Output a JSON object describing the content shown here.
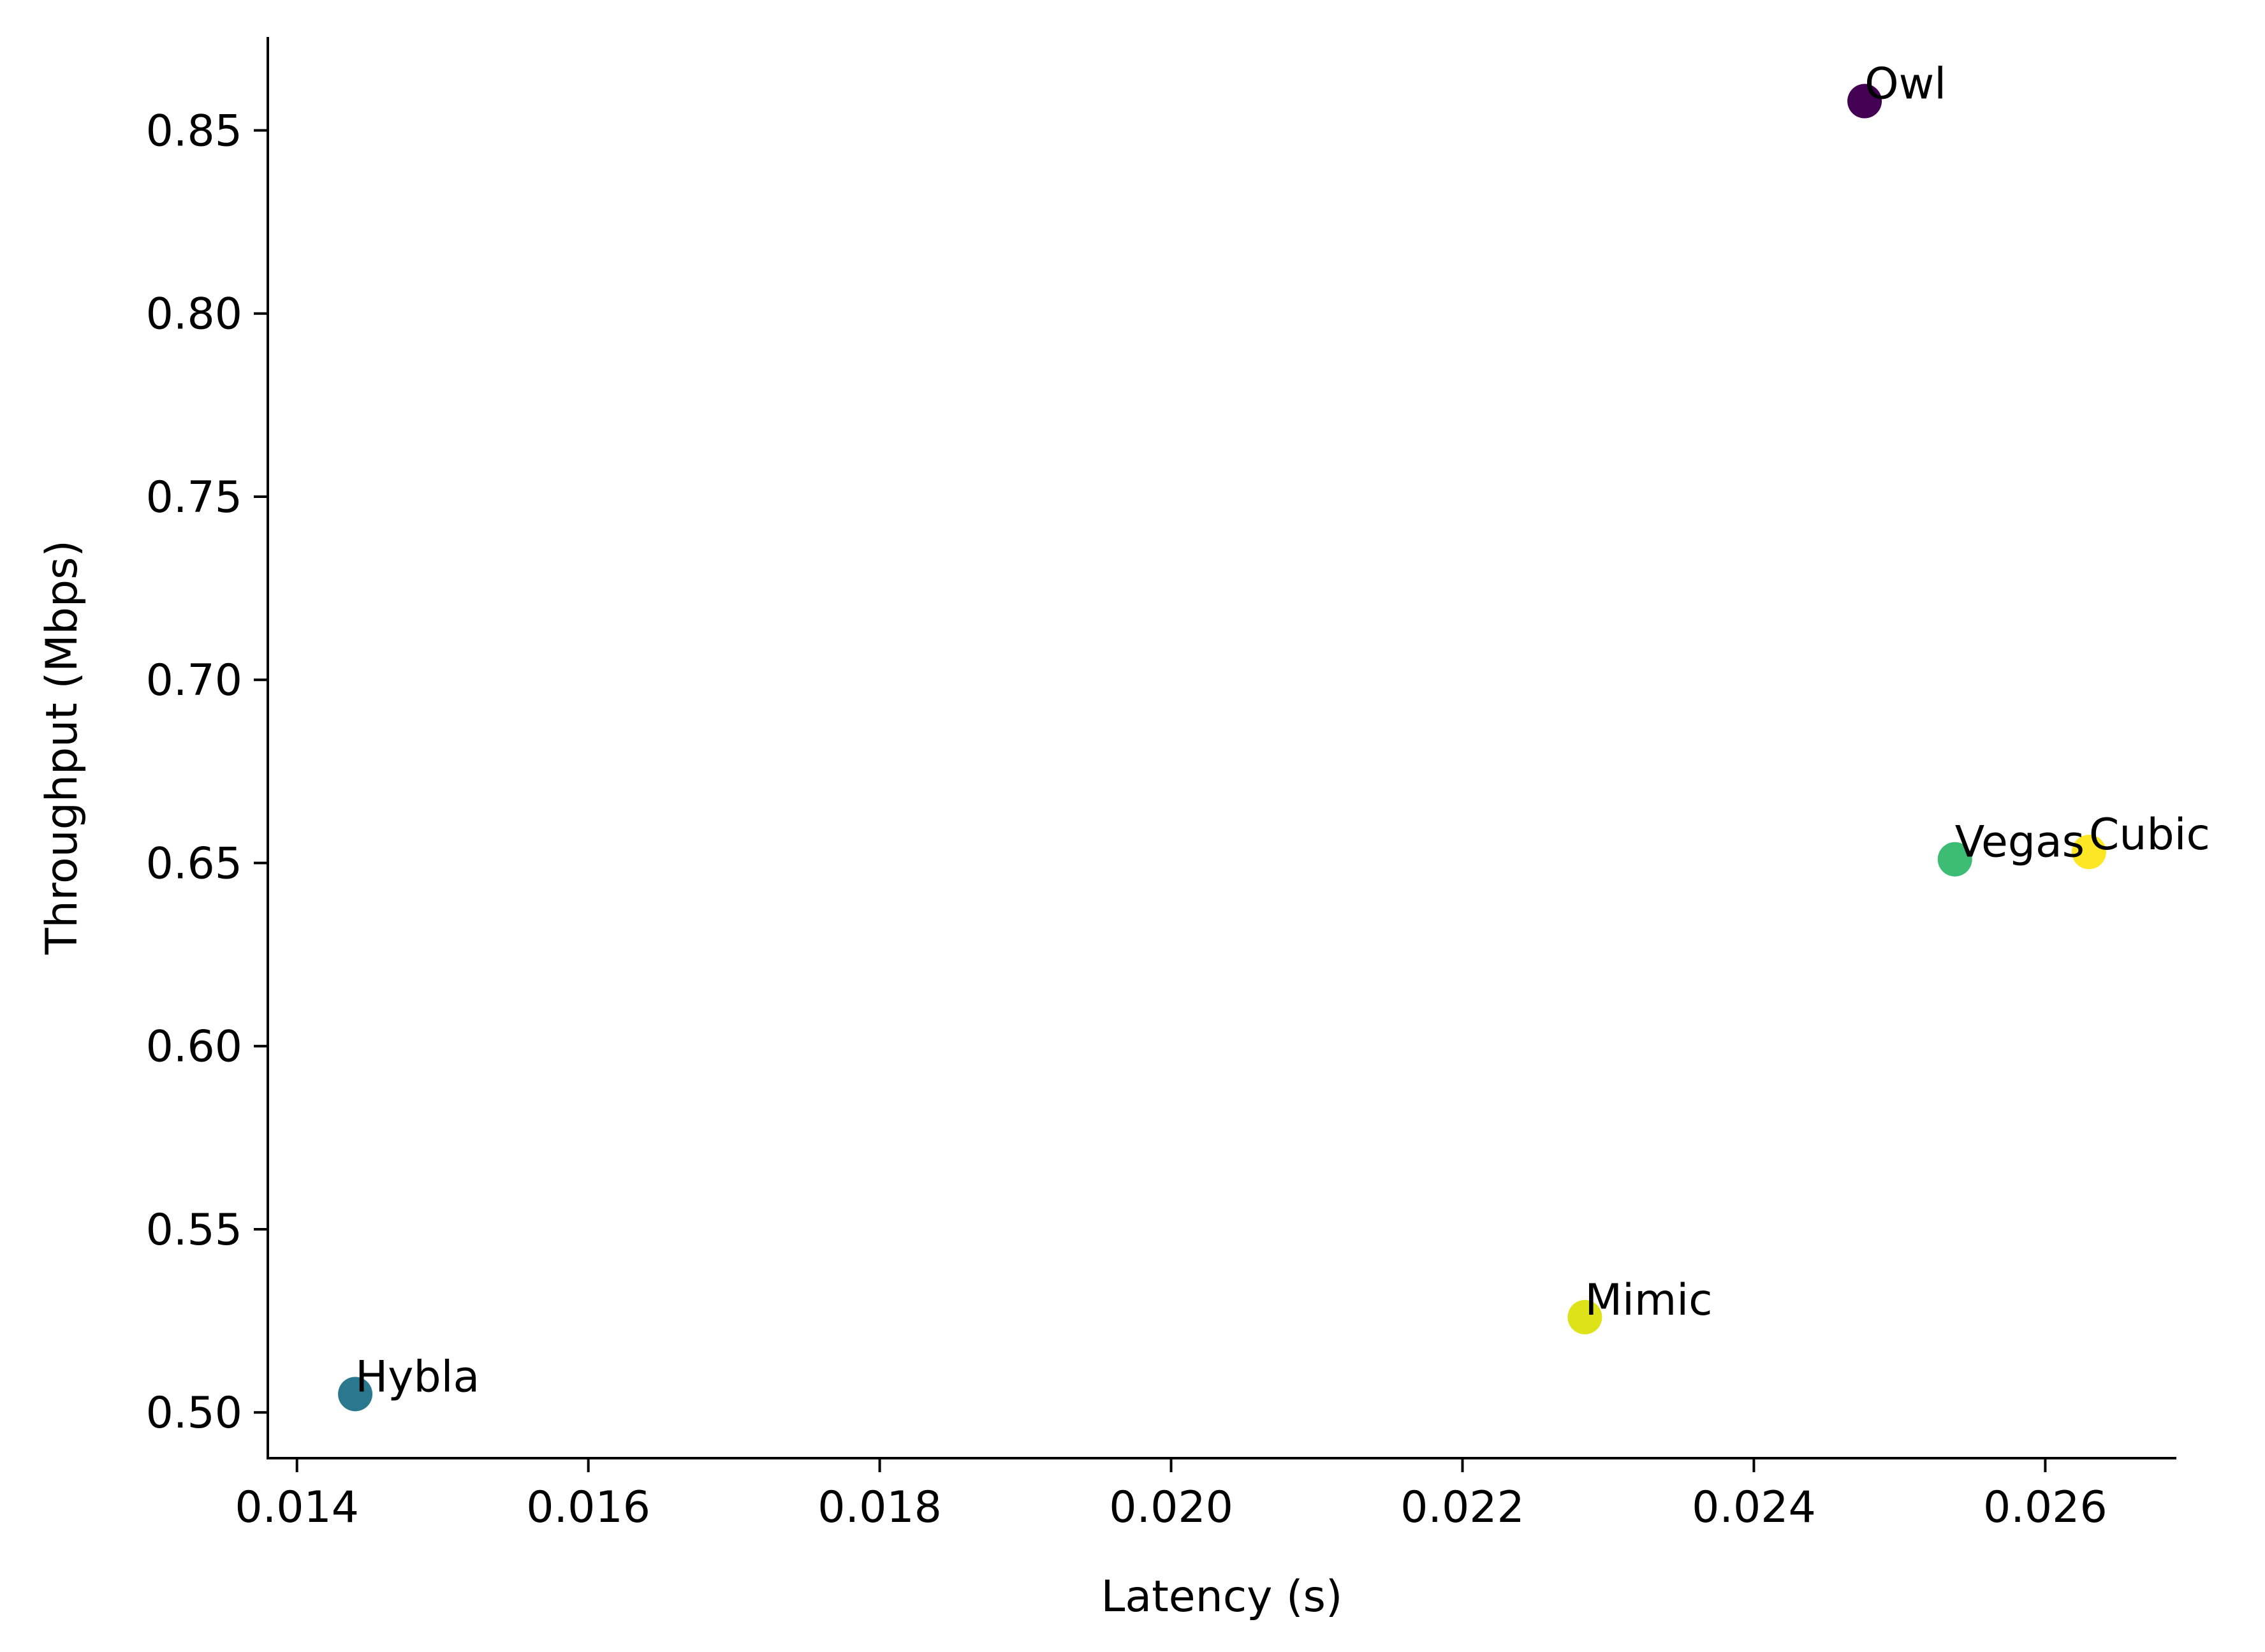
{
  "chart_data": {
    "type": "scatter",
    "title": "",
    "xlabel": "Latency (s)",
    "ylabel": "Throughput (Mbps)",
    "xlim": [
      0.0138,
      0.0269
    ],
    "ylim": [
      0.4875,
      0.8755
    ],
    "x_ticks": [
      0.014,
      0.016,
      0.018,
      0.02,
      0.022,
      0.024,
      0.026
    ],
    "x_tick_labels": [
      "0.014",
      "0.016",
      "0.018",
      "0.020",
      "0.022",
      "0.024",
      "0.026"
    ],
    "y_ticks": [
      0.5,
      0.55,
      0.6,
      0.65,
      0.7,
      0.75,
      0.8,
      0.85
    ],
    "y_tick_labels": [
      "0.50",
      "0.55",
      "0.60",
      "0.65",
      "0.70",
      "0.75",
      "0.80",
      "0.85"
    ],
    "grid": false,
    "legend": "none",
    "points": [
      {
        "label": "Owl",
        "x": 0.02476,
        "y": 0.858,
        "color": "#440154"
      },
      {
        "label": "Hybla",
        "x": 0.0144,
        "y": 0.505,
        "color": "#2a788e"
      },
      {
        "label": "Vegas",
        "x": 0.02538,
        "y": 0.651,
        "color": "#3dbc74"
      },
      {
        "label": "Mimic",
        "x": 0.02284,
        "y": 0.526,
        "color": "#dde318"
      },
      {
        "label": "Cubic",
        "x": 0.0263,
        "y": 0.653,
        "color": "#fde725"
      }
    ]
  }
}
